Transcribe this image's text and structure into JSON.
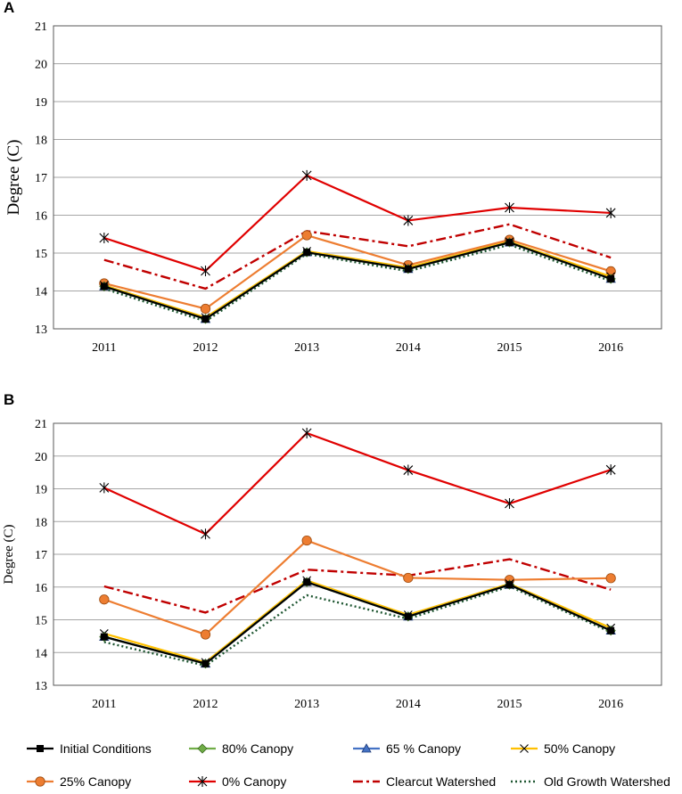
{
  "chart_data": [
    {
      "type": "line",
      "panel": "A",
      "title": "",
      "xlabel": "",
      "ylabel": "Degree (C)",
      "ylim": [
        13,
        21
      ],
      "yticks": [
        13,
        14,
        15,
        16,
        17,
        18,
        19,
        20,
        21
      ],
      "grid": true,
      "categories": [
        "2011",
        "2012",
        "2013",
        "2014",
        "2015",
        "2016"
      ],
      "series": [
        {
          "name": "Initial Conditions",
          "values": [
            14.12,
            13.26,
            15.02,
            14.58,
            15.28,
            14.32
          ]
        },
        {
          "name": "80% Canopy",
          "values": [
            14.12,
            13.26,
            15.02,
            14.58,
            15.28,
            14.32
          ]
        },
        {
          "name": "65 % Canopy",
          "values": [
            14.12,
            13.26,
            15.02,
            14.58,
            15.28,
            14.32
          ]
        },
        {
          "name": "50% Canopy",
          "values": [
            14.15,
            13.3,
            15.05,
            14.62,
            15.3,
            14.38
          ]
        },
        {
          "name": "25% Canopy",
          "values": [
            14.2,
            13.53,
            15.47,
            14.68,
            15.35,
            14.52
          ]
        },
        {
          "name": "0% Canopy",
          "values": [
            15.4,
            14.53,
            17.05,
            15.86,
            16.2,
            16.06
          ]
        },
        {
          "name": "Clearcut Watershed",
          "values": [
            14.82,
            14.06,
            15.58,
            15.18,
            15.76,
            14.88
          ]
        },
        {
          "name": "Old Growth Watershed",
          "values": [
            14.06,
            13.2,
            14.98,
            14.52,
            15.22,
            14.26
          ]
        }
      ]
    },
    {
      "type": "line",
      "panel": "B",
      "title": "",
      "xlabel": "",
      "ylabel": "Degree (C)",
      "ylim": [
        13,
        21
      ],
      "yticks": [
        13,
        14,
        15,
        16,
        17,
        18,
        19,
        20,
        21
      ],
      "grid": true,
      "categories": [
        "2011",
        "2012",
        "2013",
        "2014",
        "2015",
        "2016"
      ],
      "series": [
        {
          "name": "Initial Conditions",
          "values": [
            14.48,
            13.66,
            16.15,
            15.1,
            16.07,
            14.67
          ]
        },
        {
          "name": "80% Canopy",
          "values": [
            14.48,
            13.66,
            16.15,
            15.1,
            16.07,
            14.67
          ]
        },
        {
          "name": "65 % Canopy",
          "values": [
            14.48,
            13.66,
            16.15,
            15.1,
            16.07,
            14.67
          ]
        },
        {
          "name": "50% Canopy",
          "values": [
            14.58,
            13.7,
            16.2,
            15.15,
            16.1,
            14.75
          ]
        },
        {
          "name": "25% Canopy",
          "values": [
            15.62,
            14.55,
            17.42,
            16.28,
            16.22,
            16.27
          ]
        },
        {
          "name": "0% Canopy",
          "values": [
            19.03,
            17.62,
            20.7,
            19.57,
            18.55,
            19.58
          ]
        },
        {
          "name": "Clearcut Watershed",
          "values": [
            16.02,
            15.22,
            16.53,
            16.35,
            16.85,
            15.92
          ]
        },
        {
          "name": "Old Growth Watershed",
          "values": [
            14.32,
            13.6,
            15.75,
            15.03,
            16.02,
            14.62
          ]
        }
      ]
    }
  ],
  "panel_labels": {
    "a": "A",
    "b": "B"
  },
  "legend": [
    {
      "name": "Initial Conditions",
      "color": "#000000",
      "marker": "square",
      "dash": "solid"
    },
    {
      "name": "80% Canopy",
      "color": "#70ad47",
      "marker": "diamond",
      "dash": "solid"
    },
    {
      "name": "65 % Canopy",
      "color": "#4472c4",
      "marker": "triangle",
      "dash": "solid"
    },
    {
      "name": "50% Canopy",
      "color": "#ffc000",
      "marker": "x",
      "dash": "solid"
    },
    {
      "name": "25% Canopy",
      "color": "#ed7d31",
      "marker": "circle",
      "dash": "solid"
    },
    {
      "name": "0% Canopy",
      "color": "#e00000",
      "marker": "star",
      "dash": "solid"
    },
    {
      "name": "Clearcut Watershed",
      "color": "#c00000",
      "marker": "none",
      "dash": "dashdot"
    },
    {
      "name": "Old Growth Watershed",
      "color": "#1e5631",
      "marker": "none",
      "dash": "dot"
    }
  ]
}
